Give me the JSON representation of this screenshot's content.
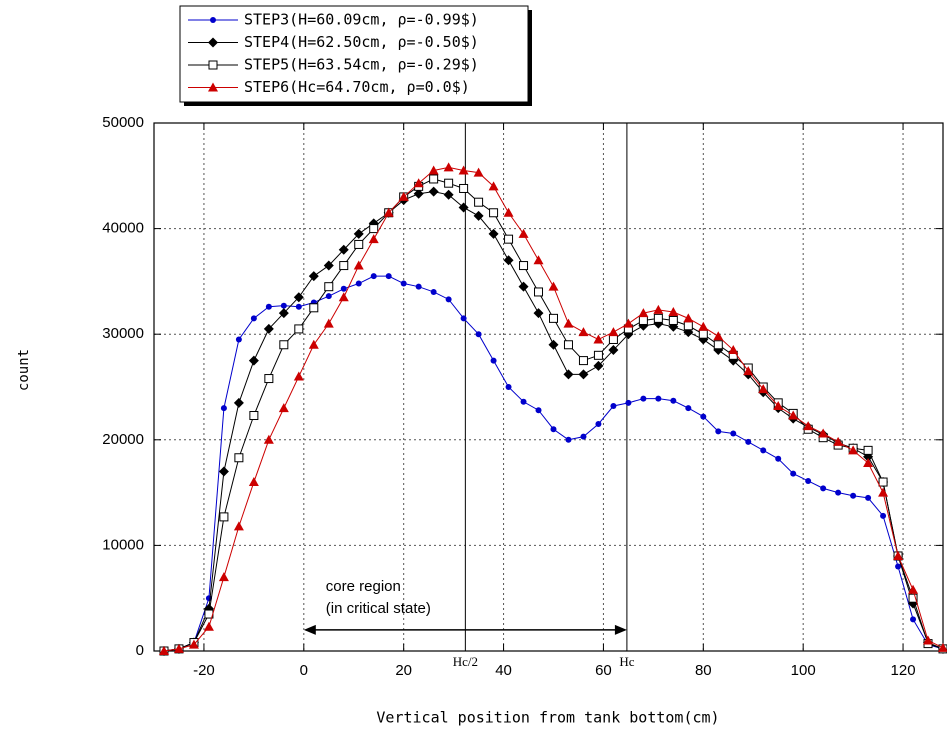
{
  "chart_data": {
    "type": "line",
    "xlabel": "Vertical position from tank bottom(cm)",
    "ylabel": "count",
    "xlim": [
      -30,
      128
    ],
    "ylim": [
      0,
      50000
    ],
    "xticks": [
      -20,
      0,
      20,
      40,
      60,
      80,
      100,
      120
    ],
    "yticks": [
      0,
      10000,
      20000,
      30000,
      40000,
      50000
    ],
    "grid": true,
    "legend": "top-left-outside",
    "x": [
      -28,
      -25,
      -22,
      -19,
      -16,
      -13,
      -10,
      -7,
      -4,
      -1,
      2,
      5,
      8,
      11,
      14,
      17,
      20,
      23,
      26,
      29,
      32,
      35,
      38,
      41,
      44,
      47,
      50,
      53,
      56,
      59,
      62,
      65,
      68,
      71,
      74,
      77,
      80,
      83,
      86,
      89,
      92,
      95,
      98,
      101,
      104,
      107,
      110,
      113,
      116,
      119,
      122,
      125,
      128
    ],
    "series": [
      {
        "name": "STEP3(H=60.09cm, ρ=-0.99$)",
        "color": "#0000cc",
        "marker": "circle",
        "values": [
          0,
          200,
          800,
          5000,
          23000,
          29500,
          31500,
          32600,
          32700,
          32600,
          33000,
          33600,
          34300,
          34800,
          35500,
          35500,
          34800,
          34500,
          34000,
          33300,
          31500,
          30000,
          27500,
          25000,
          23600,
          22800,
          21000,
          20000,
          20300,
          21500,
          23200,
          23500,
          23900,
          23900,
          23700,
          23000,
          22200,
          20800,
          20600,
          19800,
          19000,
          18200,
          16800,
          16100,
          15400,
          15000,
          14700,
          14500,
          12800,
          8000,
          3000,
          600,
          200
        ]
      },
      {
        "name": "STEP4(H=62.50cm, ρ=-0.50$)",
        "color": "#000000",
        "marker": "diamond",
        "values": [
          0,
          200,
          800,
          4000,
          17000,
          23500,
          27500,
          30500,
          32000,
          33500,
          35500,
          36500,
          38000,
          39500,
          40500,
          41500,
          42700,
          43300,
          43500,
          43200,
          42000,
          41200,
          39500,
          37000,
          34500,
          32000,
          29000,
          26200,
          26200,
          27000,
          28500,
          30000,
          30800,
          31000,
          30700,
          30200,
          29500,
          28500,
          27500,
          26200,
          24500,
          23000,
          22000,
          21200,
          20500,
          19700,
          19200,
          18400,
          16000,
          9000,
          4500,
          800,
          200
        ]
      },
      {
        "name": "STEP5(H=63.54cm, ρ=-0.29$)",
        "color": "#000000",
        "marker": "square",
        "values": [
          0,
          200,
          800,
          3500,
          12700,
          18300,
          22300,
          25800,
          29000,
          30500,
          32500,
          34500,
          36500,
          38500,
          40000,
          41500,
          43000,
          44000,
          44700,
          44300,
          43800,
          42500,
          41500,
          39000,
          36500,
          34000,
          31500,
          29000,
          27500,
          28000,
          29500,
          30500,
          31300,
          31500,
          31300,
          30800,
          30000,
          29000,
          28000,
          26800,
          25000,
          23500,
          22500,
          21000,
          20200,
          19500,
          19200,
          19000,
          16000,
          9000,
          5000,
          700,
          200
        ]
      },
      {
        "name": "STEP6(Hc=64.70cm, ρ=0.0$)",
        "color": "#cc0000",
        "marker": "triangle",
        "values": [
          0,
          200,
          600,
          2300,
          7000,
          11800,
          16000,
          20000,
          23000,
          26000,
          29000,
          31000,
          33500,
          36500,
          39000,
          41500,
          43000,
          44300,
          45500,
          45800,
          45500,
          45300,
          44000,
          41500,
          39500,
          37000,
          34500,
          31000,
          30200,
          29500,
          30200,
          31000,
          32000,
          32300,
          32100,
          31500,
          30700,
          29800,
          28500,
          26500,
          24800,
          23200,
          22300,
          21300,
          20600,
          19800,
          19000,
          17800,
          15000,
          9000,
          5800,
          1000,
          300
        ]
      }
    ],
    "vlines": [
      {
        "x": 32.35,
        "label": "Hc/2"
      },
      {
        "x": 64.7,
        "label": "Hc"
      }
    ],
    "arrow": {
      "x": [
        0,
        64.7
      ],
      "y": 2000,
      "label": [
        "core region",
        "(in critical state)"
      ]
    }
  }
}
